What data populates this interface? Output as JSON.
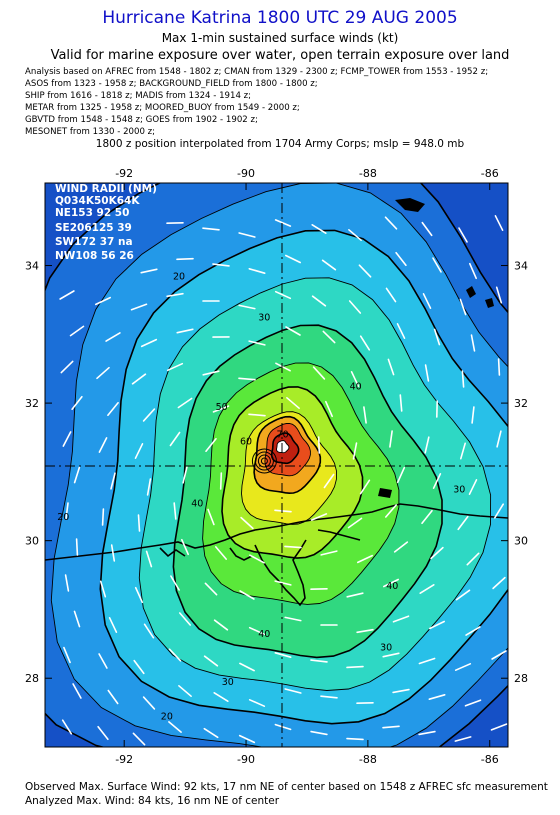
{
  "title": "Hurricane Katrina 1800 UTC 29 AUG 2005",
  "subtitle1": "Max 1-min sustained surface winds (kt)",
  "subtitle2": "Valid for marine exposure over water, open terrain exposure over land",
  "sources": [
    "Analysis based on  AFREC from 1548 - 1802 z;  CMAN from 1329 - 2300 z;  FCMP_TOWER from 1553 - 1952 z;",
    "ASOS from 1323 - 1958 z;  BACKGROUND_FIELD from 1800 - 1800 z;",
    "SHIP from 1616 - 1818 z;  MADIS from 1324 - 1914 z;",
    "METAR from 1325 - 1958 z;  MOORED_BUOY from 1549 - 2000 z;",
    "GBVTD from 1548 - 1548 z;  GOES from 1902 - 1902 z;",
    "MESONET from 1330 - 2000 z;"
  ],
  "position_line": "1800 z position interpolated from 1704 Army Corps; mslp = 948.0 mb",
  "map": {
    "lon_range": [
      -93.3,
      -85.7
    ],
    "lat_range": [
      27.0,
      35.2
    ],
    "center": {
      "lon": -89.6,
      "lat": 31.1
    },
    "lon_ticks": [
      {
        "value": -92,
        "label": "-92"
      },
      {
        "value": -90,
        "label": "-90"
      },
      {
        "value": -88,
        "label": "-88"
      },
      {
        "value": -86,
        "label": "-86"
      }
    ],
    "lat_ticks": [
      {
        "value": 28,
        "label": "28"
      },
      {
        "value": 30,
        "label": "30"
      },
      {
        "value": 32,
        "label": "32"
      },
      {
        "value": 34,
        "label": "34"
      }
    ],
    "contour_labels": [
      {
        "text": "20",
        "lon": -91.1,
        "lat": 33.8
      },
      {
        "text": "30",
        "lon": -89.7,
        "lat": 33.2
      },
      {
        "text": "40",
        "lon": -88.2,
        "lat": 32.2
      },
      {
        "text": "50",
        "lon": -90.4,
        "lat": 31.9
      },
      {
        "text": "60",
        "lon": -90.0,
        "lat": 31.4
      },
      {
        "text": "70",
        "lon": -89.4,
        "lat": 31.5
      },
      {
        "text": "40",
        "lon": -90.8,
        "lat": 30.5
      },
      {
        "text": "20",
        "lon": -93.0,
        "lat": 30.3
      },
      {
        "text": "30",
        "lon": -86.5,
        "lat": 30.7
      },
      {
        "text": "40",
        "lon": -87.6,
        "lat": 29.3
      },
      {
        "text": "40",
        "lon": -89.7,
        "lat": 28.6
      },
      {
        "text": "30",
        "lon": -87.7,
        "lat": 28.4
      },
      {
        "text": "30",
        "lon": -90.3,
        "lat": 27.9
      },
      {
        "text": "20",
        "lon": -91.3,
        "lat": 27.4
      }
    ],
    "palette": [
      "#1b6fd8",
      "#2399e8",
      "#28c0e8",
      "#2ed8c4",
      "#30d880",
      "#5ae83a",
      "#a8ec28",
      "#e8e81c",
      "#f2a81e",
      "#e84d1c",
      "#c02010",
      "#ffffff"
    ]
  },
  "wind_radii": {
    "header": "WIND RADII (NM)",
    "cols": "Q034K50K64K",
    "rows": [
      "NE153 92 50",
      "SE206125 39",
      "SW172 37 na",
      "NW108 56 26"
    ]
  },
  "footer1": "Observed Max. Surface Wind: 92 kts, 17 nm NE of center based on 1548 z AFREC sfc measurement",
  "footer2": "Analyzed Max. Wind: 84 kts, 16 nm NE of center"
}
